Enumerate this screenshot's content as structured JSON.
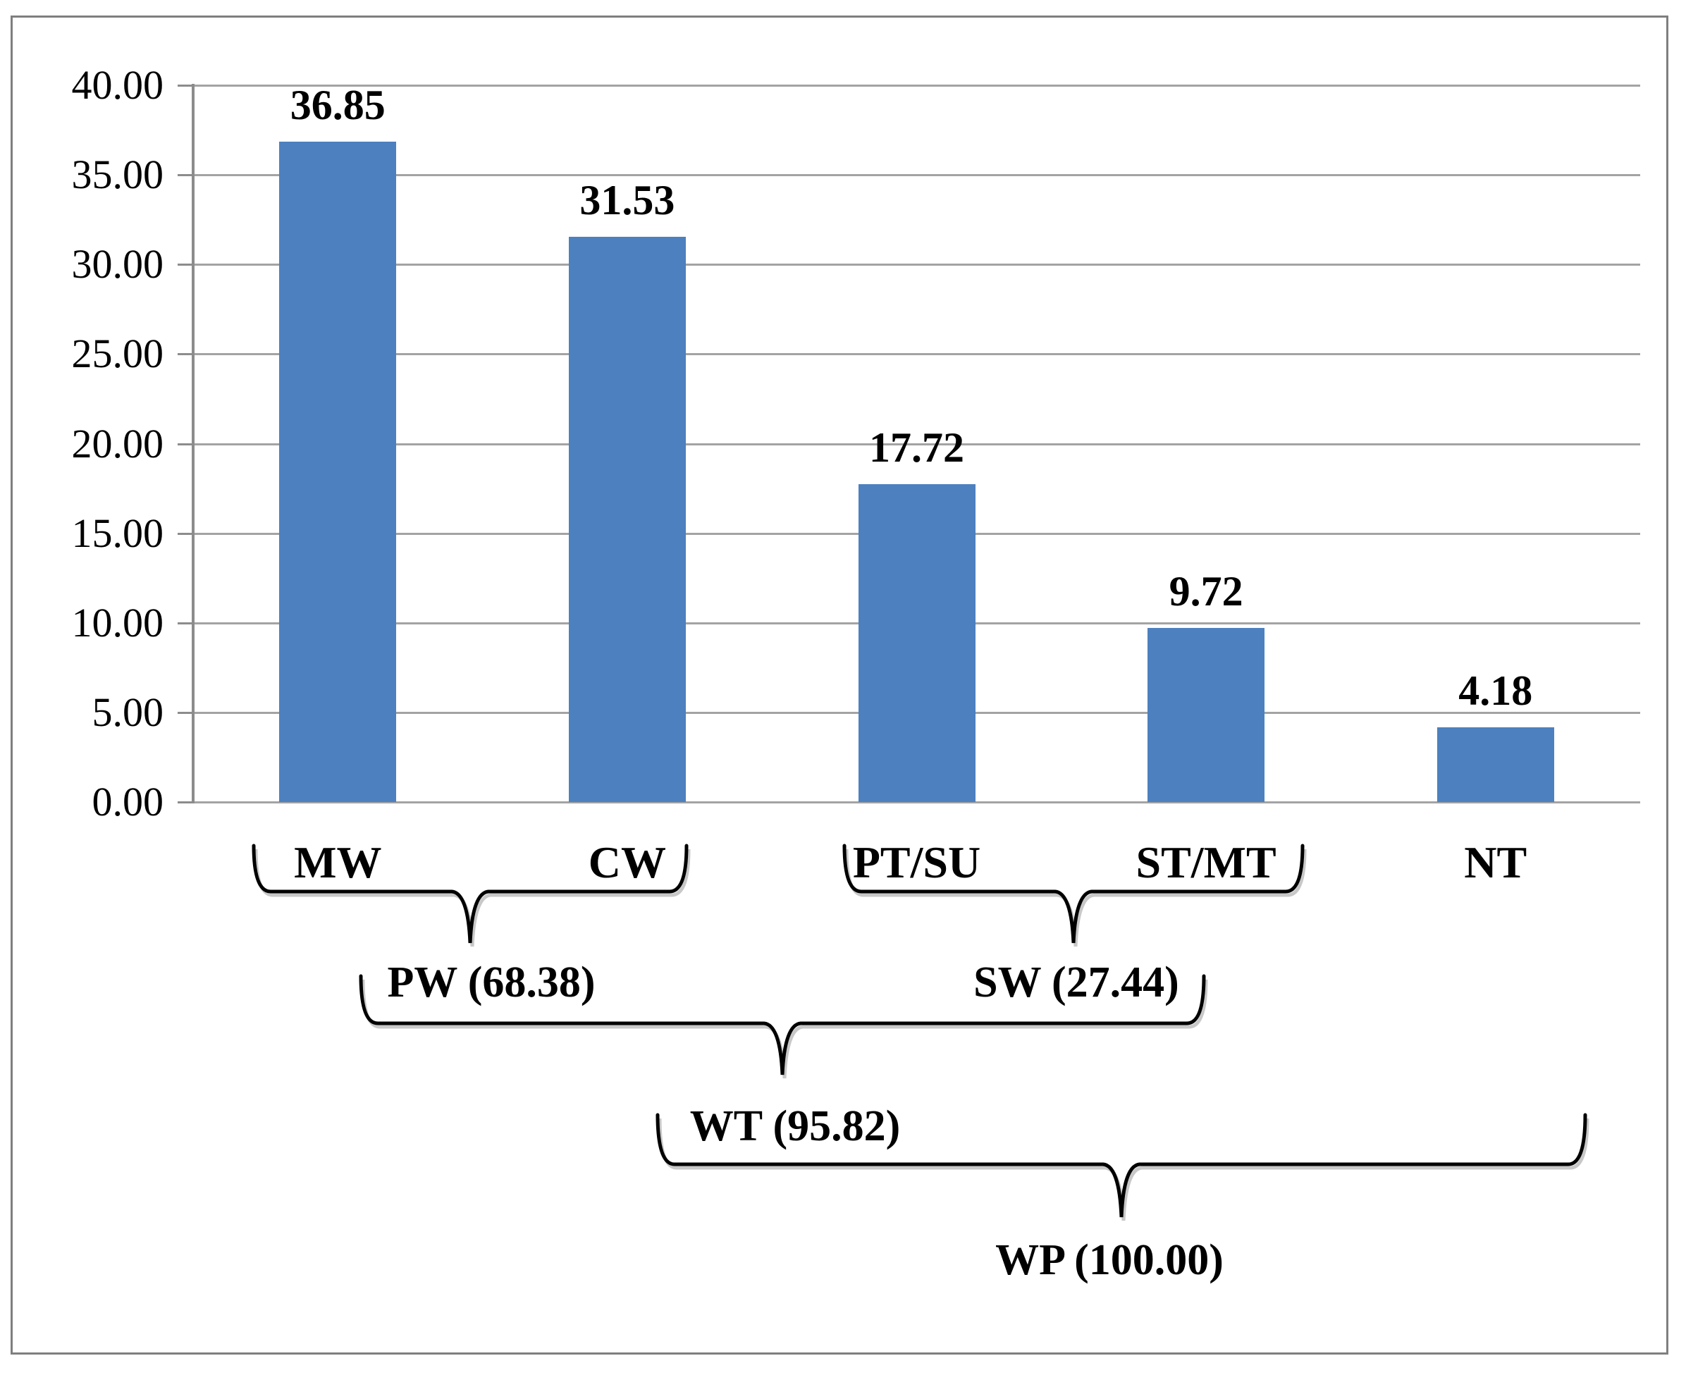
{
  "figure": {
    "background": "#ffffff",
    "border_color": "#7f7f7f"
  },
  "chart_data": {
    "type": "bar",
    "title": "",
    "xlabel": "",
    "ylabel": "",
    "categories": [
      "MW",
      "CW",
      "PT/SU",
      "ST/MT",
      "NT"
    ],
    "values": [
      36.85,
      31.53,
      17.72,
      9.72,
      4.18
    ],
    "bar_labels": [
      "36.85",
      "31.53",
      "17.72",
      "9.72",
      "4.18"
    ],
    "ylim": [
      0,
      40
    ],
    "ytick_step": 5,
    "yticks": [
      "0.00",
      "5.00",
      "10.00",
      "15.00",
      "20.00",
      "25.00",
      "30.00",
      "35.00",
      "40.00"
    ],
    "grid": true,
    "legend": "none",
    "bar_color": "#4D80BF",
    "gridline_color": "#a3a3a3",
    "axis_color": "#8c8c8c",
    "text_color": "#000000",
    "brace_color": "#000000",
    "groups": [
      {
        "id": "PW",
        "label": "PW (68.38)",
        "value": "68.38",
        "members": [
          "MW",
          "CW"
        ],
        "level": 1
      },
      {
        "id": "SW",
        "label": "SW (27.44)",
        "value": "27.44",
        "members": [
          "PT/SU",
          "ST/MT"
        ],
        "level": 1
      },
      {
        "id": "WT",
        "label": "WT (95.82)",
        "value": "95.82",
        "members": [
          "PW",
          "SW"
        ],
        "level": 2
      },
      {
        "id": "WP",
        "label": "WP (100.00)",
        "value": "100.00",
        "members": [
          "WT",
          "NT"
        ],
        "level": 3
      }
    ]
  }
}
